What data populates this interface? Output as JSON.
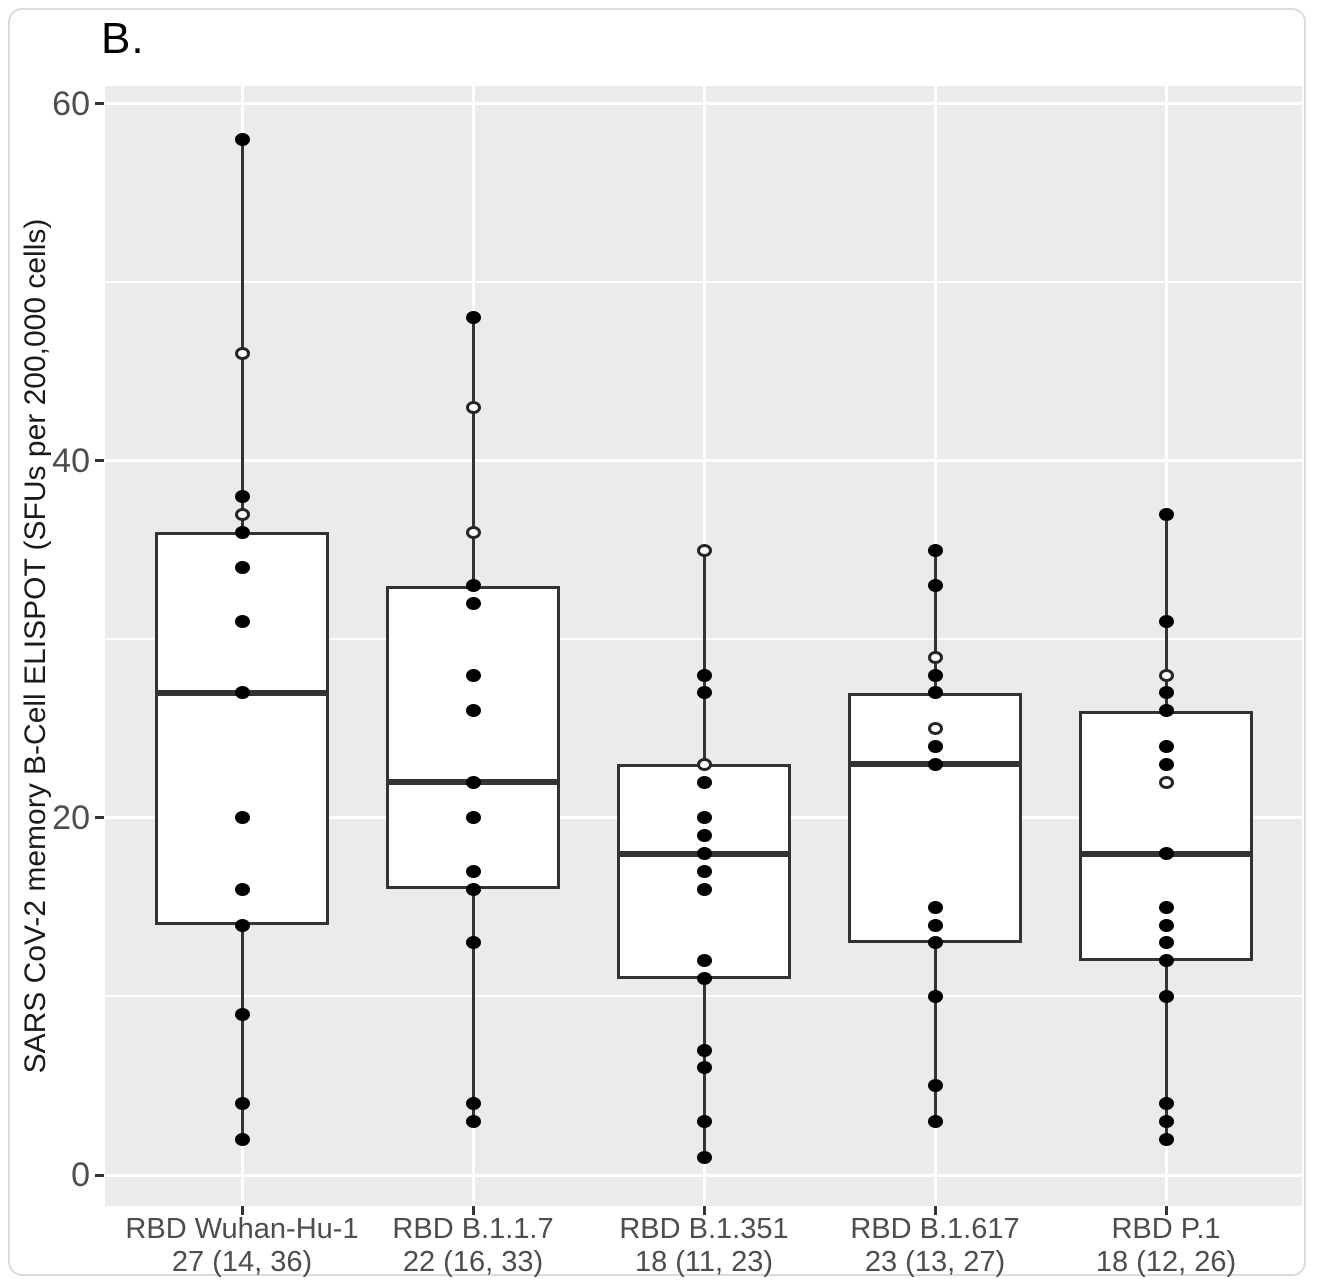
{
  "panel_label": "B.",
  "chart_data": {
    "type": "boxplot",
    "ylabel": "SARS CoV-2 memory B-Cell ELISPOT (SFUs per 200,000 cells)",
    "xlabel": "",
    "yticks": [
      0,
      20,
      40,
      60
    ],
    "ylim": [
      -1.85,
      60.85
    ],
    "grid": "on",
    "minor_gridlines": [
      10,
      30,
      50
    ],
    "panel_background": "#ebebeb",
    "gridline_color": "#ffffff",
    "box_stroke_color": "#333333",
    "point_fill_color": "#000000",
    "open_point_color": "#ffffff",
    "axis_text_color": "#4d4d4d",
    "title_text_color": "#1a1a1a",
    "groups": [
      {
        "label": "RBD Wuhan-Hu-1",
        "stats_label": "27 (14, 36)",
        "median": 27,
        "q1": 14,
        "q3": 36,
        "whisker_low": 2,
        "whisker_high": 58,
        "points_filled": [
          58,
          38,
          36,
          34,
          31,
          27,
          20,
          16,
          14,
          9,
          4,
          2
        ],
        "points_open": [
          46,
          37
        ]
      },
      {
        "label": "RBD B.1.1.7",
        "stats_label": "22 (16, 33)",
        "median": 22,
        "q1": 16,
        "q3": 33,
        "whisker_low": 3,
        "whisker_high": 48,
        "points_filled": [
          48,
          33,
          32,
          28,
          26,
          22,
          20,
          17,
          16,
          13,
          4,
          3
        ],
        "points_open": [
          43,
          36
        ]
      },
      {
        "label": "RBD B.1.351",
        "stats_label": "18 (11, 23)",
        "median": 18,
        "q1": 11,
        "q3": 23,
        "whisker_low": 1,
        "whisker_high": 35,
        "points_filled": [
          28,
          27,
          22,
          20,
          19,
          18,
          17,
          16,
          12,
          11,
          7,
          6,
          3,
          1
        ],
        "points_open": [
          35,
          23
        ]
      },
      {
        "label": "RBD B.1.617",
        "stats_label": "23 (13, 27)",
        "median": 23,
        "q1": 13,
        "q3": 27,
        "whisker_low": 3,
        "whisker_high": 35,
        "points_filled": [
          35,
          33,
          28,
          27,
          24,
          23,
          15,
          14,
          13,
          10,
          5,
          3
        ],
        "points_open": [
          29,
          25
        ]
      },
      {
        "label": "RBD P.1",
        "stats_label": "18 (12, 26)",
        "median": 18,
        "q1": 12,
        "q3": 26,
        "whisker_low": 2,
        "whisker_high": 37,
        "points_filled": [
          37,
          31,
          27,
          26,
          24,
          23,
          18,
          15,
          14,
          13,
          12,
          10,
          4,
          3,
          2
        ],
        "points_open": [
          28,
          22
        ]
      }
    ]
  }
}
